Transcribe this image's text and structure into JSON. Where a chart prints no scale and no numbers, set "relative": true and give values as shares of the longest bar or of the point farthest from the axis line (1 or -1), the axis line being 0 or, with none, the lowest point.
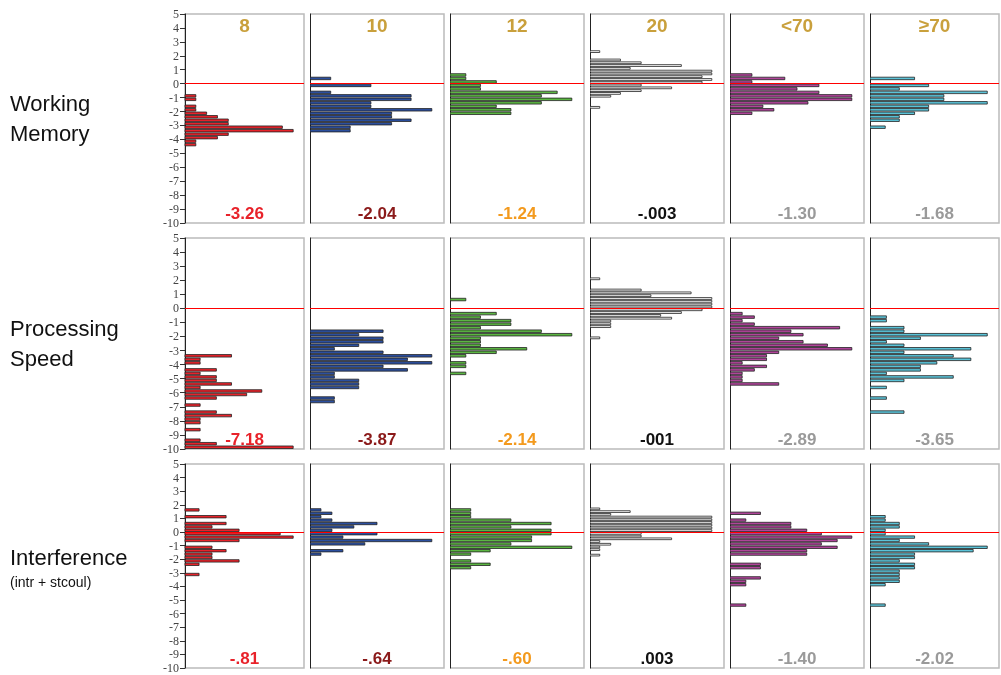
{
  "chart_data": [
    {
      "type": "bar",
      "orientation": "horizontal",
      "relative": true,
      "title": "8",
      "ylabel": "Working Memory",
      "color": "#e8222a",
      "x": [
        -4.375,
        -4.125,
        -3.875,
        -3.625,
        -3.375,
        -3.125,
        -2.875,
        -2.625,
        -2.375,
        -2.125,
        -1.875,
        -1.625,
        -1.125,
        -0.875
      ],
      "values": [
        0.1,
        0.1,
        0.3,
        0.4,
        1,
        0.9,
        0.4,
        0.4,
        0.3,
        0.2,
        0.1,
        0.1,
        0.1,
        0.1
      ],
      "ylim": [
        -10,
        5
      ],
      "yticks": [
        -10,
        -9,
        -8,
        -7,
        -6,
        -5,
        -4,
        -3,
        -2,
        -1,
        0,
        1,
        2,
        3,
        4,
        5
      ],
      "tick_labels": "y",
      "ref_lines": [
        {
          "axis": "y",
          "value": 0,
          "color": "#ff0000"
        }
      ],
      "annotations": [
        "-3.26"
      ]
    },
    {
      "type": "bar",
      "orientation": "horizontal",
      "relative": true,
      "title": "10",
      "color": "#2b4fa0",
      "x": [
        -3.375,
        -3.125,
        -2.875,
        -2.625,
        -2.375,
        -2.125,
        -1.875,
        -1.625,
        -1.375,
        -1.125,
        -0.875,
        -0.625,
        -0.125,
        0.375
      ],
      "values": [
        0.33,
        0.33,
        0.67,
        0.83,
        0.67,
        0.67,
        1,
        0.5,
        0.5,
        0.83,
        0.83,
        0.17,
        0.5,
        0.17
      ],
      "ylim": [
        -10,
        5
      ],
      "yticks": [
        -10,
        -9,
        -8,
        -7,
        -6,
        -5,
        -4,
        -3,
        -2,
        -1,
        0,
        1,
        2,
        3,
        4,
        5
      ],
      "tick_labels": false,
      "ref_lines": [
        {
          "axis": "y",
          "value": 0,
          "color": "#ff0000"
        }
      ],
      "annotations": [
        "-2.04"
      ]
    },
    {
      "type": "bar",
      "orientation": "horizontal",
      "relative": true,
      "title": "12",
      "color": "#5bb642",
      "x": [
        -2.125,
        -1.875,
        -1.625,
        -1.375,
        -1.125,
        -0.875,
        -0.625,
        -0.375,
        -0.125,
        0.125,
        0.375,
        0.625
      ],
      "values": [
        0.5,
        0.5,
        0.38,
        0.75,
        1,
        0.75,
        0.88,
        0.25,
        0.25,
        0.38,
        0.13,
        0.13
      ],
      "ylim": [
        -10,
        5
      ],
      "yticks": [
        -10,
        -9,
        -8,
        -7,
        -6,
        -5,
        -4,
        -3,
        -2,
        -1,
        0,
        1,
        2,
        3,
        4,
        5
      ],
      "tick_labels": false,
      "ref_lines": [
        {
          "axis": "y",
          "value": 0,
          "color": "#ff0000"
        }
      ],
      "annotations": [
        "-1.24"
      ]
    },
    {
      "type": "bar",
      "orientation": "horizontal",
      "relative": true,
      "title": "20",
      "color": "#ffffff",
      "x": [
        -1.7,
        -0.9,
        -0.7,
        -0.5,
        -0.3,
        -0.1,
        0.1,
        0.3,
        0.5,
        0.7,
        0.9,
        1.1,
        1.3,
        1.5,
        1.7,
        2.3
      ],
      "values": [
        0.08,
        0.17,
        0.25,
        0.42,
        0.67,
        0.42,
        0.92,
        1,
        0.92,
        1,
        1,
        0.33,
        0.75,
        0.42,
        0.25,
        0.08
      ],
      "ylim": [
        -10,
        5
      ],
      "yticks": [
        -10,
        -9,
        -8,
        -7,
        -6,
        -5,
        -4,
        -3,
        -2,
        -1,
        0,
        1,
        2,
        3,
        4,
        5
      ],
      "tick_labels": false,
      "ref_lines": [
        {
          "axis": "y",
          "value": 0,
          "color": "#ff0000"
        }
      ],
      "annotations": [
        "-.003"
      ]
    },
    {
      "type": "bar",
      "orientation": "horizontal",
      "relative": true,
      "title": "<70",
      "color": "#b0449a",
      "x": [
        -2.125,
        -1.875,
        -1.625,
        -1.375,
        -1.125,
        -0.875,
        -0.625,
        -0.375,
        -0.125,
        0.125,
        0.375,
        0.625
      ],
      "values": [
        0.18,
        0.36,
        0.27,
        0.64,
        1,
        1,
        0.73,
        0.55,
        0.73,
        0.18,
        0.45,
        0.18
      ],
      "ylim": [
        -10,
        5
      ],
      "yticks": [
        -10,
        -9,
        -8,
        -7,
        -6,
        -5,
        -4,
        -3,
        -2,
        -1,
        0,
        1,
        2,
        3,
        4,
        5
      ],
      "tick_labels": false,
      "ref_lines": [
        {
          "axis": "y",
          "value": 0,
          "color": "#ff0000"
        }
      ],
      "annotations": [
        "-1.30"
      ]
    },
    {
      "type": "bar",
      "orientation": "horizontal",
      "relative": true,
      "title": "≥70",
      "color": "#5bc3d8",
      "x": [
        -3.125,
        -2.625,
        -2.375,
        -2.125,
        -1.875,
        -1.625,
        -1.375,
        -1.125,
        -0.875,
        -0.625,
        -0.375,
        -0.125,
        0.375
      ],
      "values": [
        0.13,
        0.25,
        0.25,
        0.38,
        0.5,
        0.5,
        1,
        0.63,
        0.63,
        1,
        0.25,
        0.5,
        0.38
      ],
      "ylim": [
        -10,
        5
      ],
      "yticks": [
        -10,
        -9,
        -8,
        -7,
        -6,
        -5,
        -4,
        -3,
        -2,
        -1,
        0,
        1,
        2,
        3,
        4,
        5
      ],
      "tick_labels": false,
      "ref_lines": [
        {
          "axis": "y",
          "value": 0,
          "color": "#ff0000"
        }
      ],
      "annotations": [
        "-1.68"
      ]
    },
    {
      "type": "bar",
      "orientation": "horizontal",
      "relative": true,
      "ylabel": "Processing Speed",
      "color": "#e8222a",
      "x": [
        -9.875,
        -9.625,
        -9.375,
        -8.625,
        -8.125,
        -7.875,
        -7.625,
        -7.375,
        -6.875,
        -6.375,
        -6.125,
        -5.875,
        -5.625,
        -5.375,
        -5.125,
        -4.875,
        -4.625,
        -4.375,
        -3.875,
        -3.625,
        -3.375
      ],
      "values": [
        1,
        0.29,
        0.14,
        0.14,
        0.14,
        0.14,
        0.43,
        0.29,
        0.14,
        0.29,
        0.57,
        0.71,
        0.14,
        0.43,
        0.29,
        0.29,
        0.14,
        0.29,
        0.14,
        0.14,
        0.43
      ],
      "ylim": [
        -10,
        5
      ],
      "yticks": [
        -10,
        -9,
        -8,
        -7,
        -6,
        -5,
        -4,
        -3,
        -2,
        -1,
        0,
        1,
        2,
        3,
        4,
        5
      ],
      "tick_labels": "y",
      "ref_lines": [
        {
          "axis": "y",
          "value": 0,
          "color": "#ff0000"
        }
      ],
      "annotations": [
        "-7.18"
      ]
    },
    {
      "type": "bar",
      "orientation": "horizontal",
      "relative": true,
      "color": "#2b4fa0",
      "x": [
        -6.625,
        -6.375,
        -5.625,
        -5.375,
        -5.125,
        -4.875,
        -4.625,
        -4.375,
        -4.125,
        -3.875,
        -3.625,
        -3.375,
        -3.125,
        -2.875,
        -2.625,
        -2.375,
        -2.125,
        -1.875,
        -1.625
      ],
      "values": [
        0.2,
        0.2,
        0.4,
        0.4,
        0.4,
        0.2,
        0.2,
        0.8,
        0.6,
        1,
        0.8,
        1,
        0.6,
        0.2,
        0.4,
        0.6,
        0.6,
        0.4,
        0.6
      ],
      "ylim": [
        -10,
        5
      ],
      "yticks": [
        -10,
        -9,
        -8,
        -7,
        -6,
        -5,
        -4,
        -3,
        -2,
        -1,
        0,
        1,
        2,
        3,
        4,
        5
      ],
      "tick_labels": false,
      "ref_lines": [
        {
          "axis": "y",
          "value": 0,
          "color": "#ff0000"
        }
      ],
      "annotations": [
        "-3.87"
      ]
    },
    {
      "type": "bar",
      "orientation": "horizontal",
      "relative": true,
      "color": "#5bb642",
      "x": [
        -4.625,
        -4.125,
        -3.875,
        -3.375,
        -3.125,
        -2.875,
        -2.625,
        -2.375,
        -2.125,
        -1.875,
        -1.625,
        -1.375,
        -1.125,
        -0.875,
        -0.625,
        -0.375,
        0.625
      ],
      "values": [
        0.13,
        0.13,
        0.13,
        0.13,
        0.38,
        0.63,
        0.25,
        0.25,
        0.25,
        1,
        0.75,
        0.25,
        0.5,
        0.5,
        0.25,
        0.38,
        0.13
      ],
      "ylim": [
        -10,
        5
      ],
      "yticks": [
        -10,
        -9,
        -8,
        -7,
        -6,
        -5,
        -4,
        -3,
        -2,
        -1,
        0,
        1,
        2,
        3,
        4,
        5
      ],
      "tick_labels": false,
      "ref_lines": [
        {
          "axis": "y",
          "value": 0,
          "color": "#ff0000"
        }
      ],
      "annotations": [
        "-2.14"
      ]
    },
    {
      "type": "bar",
      "orientation": "horizontal",
      "relative": true,
      "color": "#ffffff",
      "x": [
        -2.1,
        -1.3,
        -1.1,
        -0.9,
        -0.7,
        -0.5,
        -0.3,
        -0.1,
        0.1,
        0.3,
        0.5,
        0.7,
        0.9,
        1.1,
        1.3,
        2.1
      ],
      "values": [
        0.08,
        0.17,
        0.17,
        0.17,
        0.67,
        0.58,
        0.75,
        0.92,
        1,
        1,
        1,
        1,
        0.5,
        0.83,
        0.42,
        0.08
      ],
      "ylim": [
        -10,
        5
      ],
      "yticks": [
        -10,
        -9,
        -8,
        -7,
        -6,
        -5,
        -4,
        -3,
        -2,
        -1,
        0,
        1,
        2,
        3,
        4,
        5
      ],
      "tick_labels": false,
      "ref_lines": [
        {
          "axis": "y",
          "value": 0,
          "color": "#ff0000"
        }
      ],
      "annotations": [
        "-001"
      ]
    },
    {
      "type": "bar",
      "orientation": "horizontal",
      "relative": true,
      "color": "#b0449a",
      "x": [
        -5.375,
        -5.125,
        -4.875,
        -4.625,
        -4.375,
        -4.125,
        -3.875,
        -3.625,
        -3.375,
        -3.125,
        -2.875,
        -2.625,
        -2.375,
        -2.125,
        -1.875,
        -1.625,
        -1.375,
        -1.125,
        -0.875,
        -0.625,
        -0.375
      ],
      "values": [
        0.4,
        0.1,
        0.1,
        0.1,
        0.2,
        0.3,
        0.1,
        0.3,
        0.3,
        0.4,
        1,
        0.8,
        0.6,
        0.4,
        0.6,
        0.5,
        0.9,
        0.2,
        0.1,
        0.2,
        0.1
      ],
      "ylim": [
        -10,
        5
      ],
      "yticks": [
        -10,
        -9,
        -8,
        -7,
        -6,
        -5,
        -4,
        -3,
        -2,
        -1,
        0,
        1,
        2,
        3,
        4,
        5
      ],
      "tick_labels": false,
      "ref_lines": [
        {
          "axis": "y",
          "value": 0,
          "color": "#ff0000"
        }
      ],
      "annotations": [
        "-2.89"
      ]
    },
    {
      "type": "bar",
      "orientation": "horizontal",
      "relative": true,
      "color": "#5bc3d8",
      "x": [
        -7.375,
        -6.375,
        -5.625,
        -5.125,
        -4.875,
        -4.625,
        -4.375,
        -4.125,
        -3.875,
        -3.625,
        -3.375,
        -3.125,
        -2.875,
        -2.625,
        -2.375,
        -2.125,
        -1.875,
        -1.625,
        -1.375,
        -0.875,
        -0.625
      ],
      "values": [
        0.29,
        0.14,
        0.14,
        0.29,
        0.71,
        0.14,
        0.43,
        0.43,
        0.57,
        0.86,
        0.71,
        0.29,
        0.86,
        0.29,
        0.14,
        0.43,
        1,
        0.29,
        0.29,
        0.14,
        0.14
      ],
      "ylim": [
        -10,
        5
      ],
      "yticks": [
        -10,
        -9,
        -8,
        -7,
        -6,
        -5,
        -4,
        -3,
        -2,
        -1,
        0,
        1,
        2,
        3,
        4,
        5
      ],
      "tick_labels": false,
      "ref_lines": [
        {
          "axis": "y",
          "value": 0,
          "color": "#ff0000"
        }
      ],
      "annotations": [
        "-3.65"
      ]
    },
    {
      "type": "bar",
      "orientation": "horizontal",
      "relative": true,
      "ylabel": "Interference (intr + stcoul)",
      "color": "#e8222a",
      "x": [
        -3.125,
        -2.375,
        -2.125,
        -1.875,
        -1.625,
        -1.375,
        -1.125,
        -0.625,
        -0.375,
        -0.125,
        0.125,
        0.375,
        0.625,
        1.125,
        1.625
      ],
      "values": [
        0.13,
        0.13,
        0.5,
        0.25,
        0.25,
        0.38,
        0.25,
        0.5,
        1,
        0.88,
        0.5,
        0.25,
        0.38,
        0.38,
        0.13
      ],
      "ylim": [
        -10,
        5
      ],
      "yticks": [
        -10,
        -9,
        -8,
        -7,
        -6,
        -5,
        -4,
        -3,
        -2,
        -1,
        0,
        1,
        2,
        3,
        4,
        5
      ],
      "tick_labels": "y",
      "ref_lines": [
        {
          "axis": "y",
          "value": 0,
          "color": "#ff0000"
        }
      ],
      "annotations": [
        "-.81"
      ]
    },
    {
      "type": "bar",
      "orientation": "horizontal",
      "relative": true,
      "color": "#2b4fa0",
      "x": [
        -1.625,
        -1.375,
        -0.875,
        -0.625,
        -0.375,
        -0.125,
        0.125,
        0.375,
        0.625,
        0.875,
        1.125,
        1.375,
        1.625
      ],
      "values": [
        0.09,
        0.27,
        0.45,
        1,
        0.27,
        0.55,
        0.18,
        0.36,
        0.55,
        0.18,
        0.09,
        0.18,
        0.09
      ],
      "ylim": [
        -10,
        5
      ],
      "yticks": [
        -10,
        -9,
        -8,
        -7,
        -6,
        -5,
        -4,
        -3,
        -2,
        -1,
        0,
        1,
        2,
        3,
        4,
        5
      ],
      "tick_labels": false,
      "ref_lines": [
        {
          "axis": "y",
          "value": 0,
          "color": "#ff0000"
        }
      ],
      "annotations": [
        "-.64"
      ]
    },
    {
      "type": "bar",
      "orientation": "horizontal",
      "relative": true,
      "color": "#5bb642",
      "x": [
        -2.625,
        -2.375,
        -2.125,
        -1.625,
        -1.375,
        -1.125,
        -0.875,
        -0.625,
        -0.375,
        -0.125,
        0.125,
        0.375,
        0.625,
        0.875,
        1.125,
        1.375,
        1.625
      ],
      "values": [
        0.17,
        0.33,
        0.17,
        0.17,
        0.33,
        1,
        0.5,
        0.67,
        0.67,
        0.83,
        0.83,
        0.5,
        0.83,
        0.5,
        0.17,
        0.17,
        0.17
      ],
      "ylim": [
        -10,
        5
      ],
      "yticks": [
        -10,
        -9,
        -8,
        -7,
        -6,
        -5,
        -4,
        -3,
        -2,
        -1,
        0,
        1,
        2,
        3,
        4,
        5
      ],
      "tick_labels": false,
      "ref_lines": [
        {
          "axis": "y",
          "value": 0,
          "color": "#ff0000"
        }
      ],
      "annotations": [
        "-.60"
      ]
    },
    {
      "type": "bar",
      "orientation": "horizontal",
      "relative": true,
      "color": "#ffffff",
      "x": [
        -1.7,
        -1.3,
        -1.1,
        -0.9,
        -0.7,
        -0.5,
        -0.3,
        -0.1,
        0.1,
        0.3,
        0.5,
        0.7,
        0.9,
        1.1,
        1.3,
        1.5,
        1.7
      ],
      "values": [
        0.08,
        0.08,
        0.08,
        0.17,
        0.08,
        0.67,
        0.42,
        0.42,
        1,
        1,
        1,
        1,
        1,
        1,
        0.17,
        0.33,
        0.08
      ],
      "ylim": [
        -10,
        5
      ],
      "yticks": [
        -10,
        -9,
        -8,
        -7,
        -6,
        -5,
        -4,
        -3,
        -2,
        -1,
        0,
        1,
        2,
        3,
        4,
        5
      ],
      "tick_labels": false,
      "ref_lines": [
        {
          "axis": "y",
          "value": 0,
          "color": "#ff0000"
        }
      ],
      "annotations": [
        ".003"
      ]
    },
    {
      "type": "bar",
      "orientation": "horizontal",
      "relative": true,
      "color": "#b0449a",
      "x": [
        -5.375,
        -3.875,
        -3.625,
        -3.375,
        -2.625,
        -2.375,
        -1.625,
        -1.375,
        -1.125,
        -0.875,
        -0.625,
        -0.375,
        -0.125,
        0.125,
        0.375,
        0.625,
        0.875,
        1.375
      ],
      "values": [
        0.13,
        0.13,
        0.13,
        0.25,
        0.25,
        0.25,
        0.63,
        0.63,
        0.88,
        0.75,
        0.88,
        1,
        0.75,
        0.63,
        0.5,
        0.5,
        0.13,
        0.25
      ],
      "ylim": [
        -10,
        5
      ],
      "yticks": [
        -10,
        -9,
        -8,
        -7,
        -6,
        -5,
        -4,
        -3,
        -2,
        -1,
        0,
        1,
        2,
        3,
        4,
        5
      ],
      "tick_labels": false,
      "ref_lines": [
        {
          "axis": "y",
          "value": 0,
          "color": "#ff0000"
        }
      ],
      "annotations": [
        "-1.40"
      ]
    },
    {
      "type": "bar",
      "orientation": "horizontal",
      "relative": true,
      "color": "#5bc3d8",
      "x": [
        -5.375,
        -3.875,
        -3.625,
        -3.375,
        -3.125,
        -2.875,
        -2.625,
        -2.375,
        -2.125,
        -1.875,
        -1.625,
        -1.375,
        -1.125,
        -0.875,
        -0.625,
        -0.375,
        -0.125,
        0.125,
        0.375,
        0.625,
        0.875,
        1.125
      ],
      "values": [
        0.13,
        0.13,
        0.25,
        0.25,
        0.25,
        0.25,
        0.38,
        0.38,
        0.25,
        0.38,
        0.38,
        0.88,
        1,
        0.5,
        0.25,
        0.38,
        0.13,
        0.13,
        0.25,
        0.25,
        0.13,
        0.13
      ],
      "ylim": [
        -10,
        5
      ],
      "yticks": [
        -10,
        -9,
        -8,
        -7,
        -6,
        -5,
        -4,
        -3,
        -2,
        -1,
        0,
        1,
        2,
        3,
        4,
        5
      ],
      "tick_labels": false,
      "ref_lines": [
        {
          "axis": "y",
          "value": 0,
          "color": "#ff0000"
        }
      ],
      "annotations": [
        "-2.02"
      ]
    }
  ]
}
